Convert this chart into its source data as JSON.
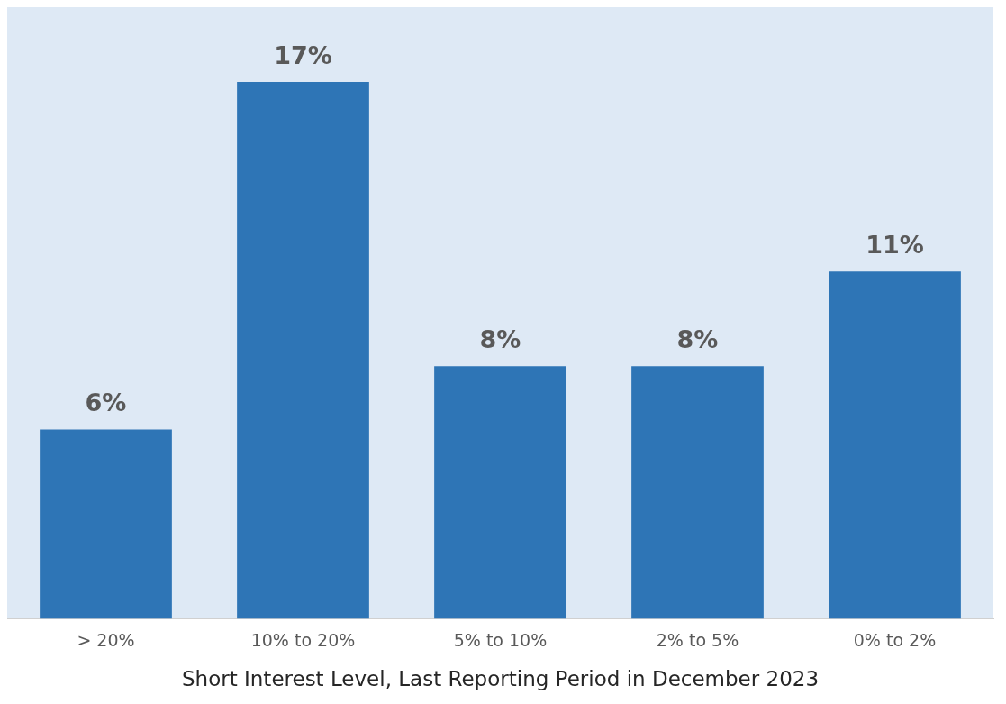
{
  "chart_data": {
    "type": "bar",
    "xlabel": "Short Interest Level, Last Reporting Period in December 2023",
    "categories": [
      "> 20%",
      "10% to 20%",
      "5% to 10%",
      "2% to 5%",
      "0% to 2%"
    ],
    "values": [
      6,
      17,
      8,
      8,
      11
    ],
    "value_labels": [
      "6%",
      "17%",
      "8%",
      "8%",
      "11%"
    ],
    "color": "#2e75b6",
    "grid": false,
    "legend": false
  }
}
